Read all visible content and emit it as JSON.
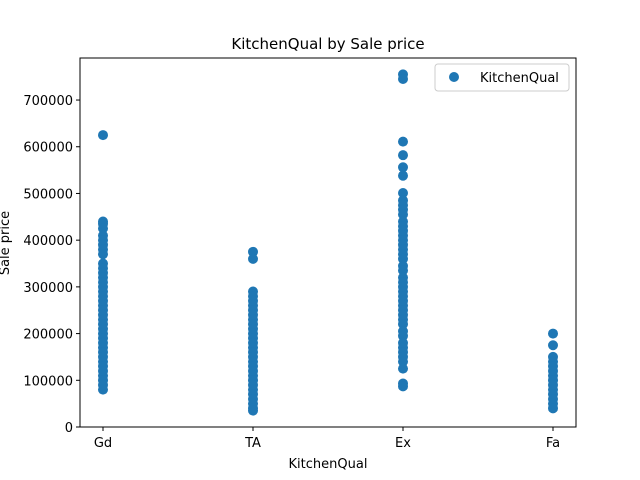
{
  "chart_data": {
    "type": "scatter",
    "title": "KitchenQual by Sale price",
    "xlabel": "KitchenQual",
    "ylabel": "Sale price",
    "categories": [
      "Gd",
      "TA",
      "Ex",
      "Fa"
    ],
    "ylim": [
      0,
      790000
    ],
    "yticks": [
      0,
      100000,
      200000,
      300000,
      400000,
      500000,
      600000,
      700000
    ],
    "grid": false,
    "legend": {
      "position": "top-right",
      "entries": [
        "KitchenQual"
      ]
    },
    "marker_color": "#1f77b4",
    "series": [
      {
        "name": "KitchenQual",
        "points": [
          {
            "x": "Gd",
            "y": 625000
          },
          {
            "x": "Gd",
            "y": 440000
          },
          {
            "x": "Gd",
            "y": 435000
          },
          {
            "x": "Gd",
            "y": 425000
          },
          {
            "x": "Gd",
            "y": 410000
          },
          {
            "x": "Gd",
            "y": 400000
          },
          {
            "x": "Gd",
            "y": 390000
          },
          {
            "x": "Gd",
            "y": 380000
          },
          {
            "x": "Gd",
            "y": 370000
          },
          {
            "x": "Gd",
            "y": 350000
          },
          {
            "x": "Gd",
            "y": 340000
          },
          {
            "x": "Gd",
            "y": 330000
          },
          {
            "x": "Gd",
            "y": 320000
          },
          {
            "x": "Gd",
            "y": 310000
          },
          {
            "x": "Gd",
            "y": 300000
          },
          {
            "x": "Gd",
            "y": 290000
          },
          {
            "x": "Gd",
            "y": 280000
          },
          {
            "x": "Gd",
            "y": 270000
          },
          {
            "x": "Gd",
            "y": 260000
          },
          {
            "x": "Gd",
            "y": 250000
          },
          {
            "x": "Gd",
            "y": 240000
          },
          {
            "x": "Gd",
            "y": 230000
          },
          {
            "x": "Gd",
            "y": 220000
          },
          {
            "x": "Gd",
            "y": 210000
          },
          {
            "x": "Gd",
            "y": 200000
          },
          {
            "x": "Gd",
            "y": 190000
          },
          {
            "x": "Gd",
            "y": 180000
          },
          {
            "x": "Gd",
            "y": 170000
          },
          {
            "x": "Gd",
            "y": 160000
          },
          {
            "x": "Gd",
            "y": 150000
          },
          {
            "x": "Gd",
            "y": 140000
          },
          {
            "x": "Gd",
            "y": 130000
          },
          {
            "x": "Gd",
            "y": 120000
          },
          {
            "x": "Gd",
            "y": 110000
          },
          {
            "x": "Gd",
            "y": 100000
          },
          {
            "x": "Gd",
            "y": 90000
          },
          {
            "x": "Gd",
            "y": 80000
          },
          {
            "x": "TA",
            "y": 375000
          },
          {
            "x": "TA",
            "y": 360000
          },
          {
            "x": "TA",
            "y": 290000
          },
          {
            "x": "TA",
            "y": 280000
          },
          {
            "x": "TA",
            "y": 270000
          },
          {
            "x": "TA",
            "y": 260000
          },
          {
            "x": "TA",
            "y": 250000
          },
          {
            "x": "TA",
            "y": 240000
          },
          {
            "x": "TA",
            "y": 230000
          },
          {
            "x": "TA",
            "y": 220000
          },
          {
            "x": "TA",
            "y": 210000
          },
          {
            "x": "TA",
            "y": 200000
          },
          {
            "x": "TA",
            "y": 190000
          },
          {
            "x": "TA",
            "y": 180000
          },
          {
            "x": "TA",
            "y": 170000
          },
          {
            "x": "TA",
            "y": 160000
          },
          {
            "x": "TA",
            "y": 150000
          },
          {
            "x": "TA",
            "y": 140000
          },
          {
            "x": "TA",
            "y": 130000
          },
          {
            "x": "TA",
            "y": 120000
          },
          {
            "x": "TA",
            "y": 110000
          },
          {
            "x": "TA",
            "y": 100000
          },
          {
            "x": "TA",
            "y": 90000
          },
          {
            "x": "TA",
            "y": 80000
          },
          {
            "x": "TA",
            "y": 70000
          },
          {
            "x": "TA",
            "y": 60000
          },
          {
            "x": "TA",
            "y": 50000
          },
          {
            "x": "TA",
            "y": 40000
          },
          {
            "x": "TA",
            "y": 35000
          },
          {
            "x": "Ex",
            "y": 755000
          },
          {
            "x": "Ex",
            "y": 745000
          },
          {
            "x": "Ex",
            "y": 611000
          },
          {
            "x": "Ex",
            "y": 582000
          },
          {
            "x": "Ex",
            "y": 556000
          },
          {
            "x": "Ex",
            "y": 538000
          },
          {
            "x": "Ex",
            "y": 501000
          },
          {
            "x": "Ex",
            "y": 485000
          },
          {
            "x": "Ex",
            "y": 475000
          },
          {
            "x": "Ex",
            "y": 465000
          },
          {
            "x": "Ex",
            "y": 455000
          },
          {
            "x": "Ex",
            "y": 440000
          },
          {
            "x": "Ex",
            "y": 430000
          },
          {
            "x": "Ex",
            "y": 420000
          },
          {
            "x": "Ex",
            "y": 410000
          },
          {
            "x": "Ex",
            "y": 400000
          },
          {
            "x": "Ex",
            "y": 390000
          },
          {
            "x": "Ex",
            "y": 380000
          },
          {
            "x": "Ex",
            "y": 370000
          },
          {
            "x": "Ex",
            "y": 360000
          },
          {
            "x": "Ex",
            "y": 345000
          },
          {
            "x": "Ex",
            "y": 335000
          },
          {
            "x": "Ex",
            "y": 320000
          },
          {
            "x": "Ex",
            "y": 310000
          },
          {
            "x": "Ex",
            "y": 300000
          },
          {
            "x": "Ex",
            "y": 290000
          },
          {
            "x": "Ex",
            "y": 280000
          },
          {
            "x": "Ex",
            "y": 270000
          },
          {
            "x": "Ex",
            "y": 260000
          },
          {
            "x": "Ex",
            "y": 250000
          },
          {
            "x": "Ex",
            "y": 240000
          },
          {
            "x": "Ex",
            "y": 230000
          },
          {
            "x": "Ex",
            "y": 220000
          },
          {
            "x": "Ex",
            "y": 205000
          },
          {
            "x": "Ex",
            "y": 195000
          },
          {
            "x": "Ex",
            "y": 180000
          },
          {
            "x": "Ex",
            "y": 170000
          },
          {
            "x": "Ex",
            "y": 160000
          },
          {
            "x": "Ex",
            "y": 150000
          },
          {
            "x": "Ex",
            "y": 140000
          },
          {
            "x": "Ex",
            "y": 125000
          },
          {
            "x": "Ex",
            "y": 93000
          },
          {
            "x": "Ex",
            "y": 87000
          },
          {
            "x": "Fa",
            "y": 200000
          },
          {
            "x": "Fa",
            "y": 175000
          },
          {
            "x": "Fa",
            "y": 150000
          },
          {
            "x": "Fa",
            "y": 140000
          },
          {
            "x": "Fa",
            "y": 130000
          },
          {
            "x": "Fa",
            "y": 120000
          },
          {
            "x": "Fa",
            "y": 110000
          },
          {
            "x": "Fa",
            "y": 100000
          },
          {
            "x": "Fa",
            "y": 90000
          },
          {
            "x": "Fa",
            "y": 80000
          },
          {
            "x": "Fa",
            "y": 70000
          },
          {
            "x": "Fa",
            "y": 60000
          },
          {
            "x": "Fa",
            "y": 50000
          },
          {
            "x": "Fa",
            "y": 40000
          }
        ]
      }
    ]
  }
}
